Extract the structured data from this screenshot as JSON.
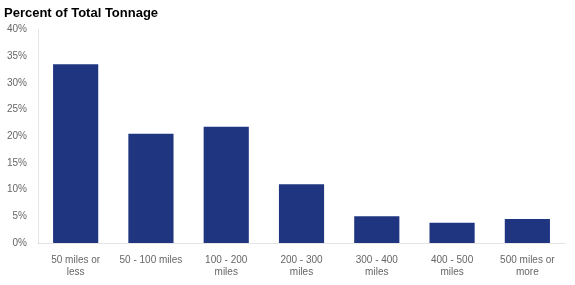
{
  "chart_data": {
    "type": "bar",
    "title": "Percent of Total Tonnage",
    "categories": [
      "50 miles or\nless",
      "50 - 100 miles",
      "100 - 200\nmiles",
      "200 - 300\nmiles",
      "300 - 400\nmiles",
      "400 - 500\nmiles",
      "500 miles or\nmore"
    ],
    "values": [
      33.5,
      20.5,
      21.8,
      11.0,
      5.0,
      3.8,
      4.5
    ],
    "color": "#1F3580",
    "ylim": [
      0,
      40
    ],
    "yticks": [
      {
        "value": 0,
        "label": "0%"
      },
      {
        "value": 5,
        "label": "5%"
      },
      {
        "value": 10,
        "label": "10%"
      },
      {
        "value": 15,
        "label": "15%"
      },
      {
        "value": 20,
        "label": "20%"
      },
      {
        "value": 25,
        "label": "25%"
      },
      {
        "value": 30,
        "label": "30%"
      },
      {
        "value": 35,
        "label": "35%"
      },
      {
        "value": 40,
        "label": "40%"
      }
    ],
    "grid": false
  }
}
